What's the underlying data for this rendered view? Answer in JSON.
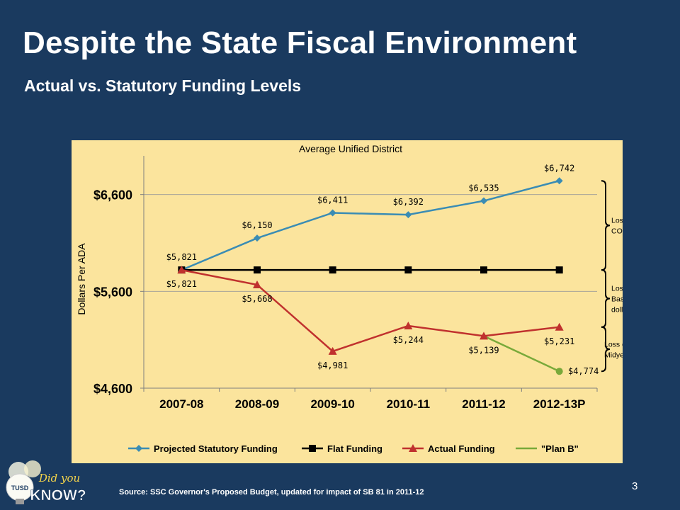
{
  "slide": {
    "title": "Despite the State Fiscal Environment",
    "subtitle": "Actual vs. Statutory Funding Levels",
    "source": "Source: SSC Governor's Proposed Budget, updated for impact of SB 81 in 2011-12",
    "page_number": "3",
    "logo": {
      "badge": "TUSD",
      "line1": "Did you",
      "line2": "KNOW?"
    }
  },
  "colors": {
    "background": "#1a3a5f",
    "chart_bg": "#fbe49d",
    "projected": "#3a8cb4",
    "flat": "#000000",
    "actual": "#c0312e",
    "planb": "#79a93a"
  },
  "chart_data": {
    "type": "line",
    "title": "Average Unified District",
    "ylabel": "Dollars Per ADA",
    "xlabel": "",
    "categories": [
      "2007-08",
      "2008-09",
      "2009-10",
      "2010-11",
      "2011-12",
      "2012-13P"
    ],
    "ylim": [
      4600,
      7000
    ],
    "yticks": [
      4600,
      5600,
      6600
    ],
    "ytick_labels": [
      "$4,600",
      "$5,600",
      "$6,600"
    ],
    "grid": true,
    "legend_position": "bottom",
    "series": [
      {
        "name": "Projected Statutory Funding",
        "values": [
          5821,
          6150,
          6411,
          6392,
          6535,
          6742
        ],
        "labels": [
          "$5,821",
          "$6,150",
          "$6,411",
          "$6,392",
          "$6,535",
          "$6,742"
        ],
        "marker": "diamond"
      },
      {
        "name": "Flat Funding",
        "values": [
          5821,
          5821,
          5821,
          5821,
          5821,
          5821
        ],
        "labels": [],
        "marker": "square"
      },
      {
        "name": "Actual Funding",
        "values": [
          5821,
          5668,
          4981,
          5244,
          5139,
          5231
        ],
        "labels": [
          "$5,821",
          "$5,668",
          "$4,981",
          "$5,244",
          "$5,139",
          "$5,231"
        ],
        "marker": "triangle"
      },
      {
        "name": "\"Plan B\"",
        "values": [
          null,
          null,
          null,
          null,
          5139,
          4774
        ],
        "labels": [
          "",
          "",
          "",
          "",
          "",
          "$4,774"
        ],
        "marker": "circle"
      }
    ],
    "annotations": [
      {
        "lines": [
          "Loss of",
          "COLA"
        ],
        "from": 6742,
        "to": 5821
      },
      {
        "lines": [
          "Loss of",
          "Baseline",
          "dollars"
        ],
        "from": 5821,
        "to": 5231
      },
      {
        "lines": [
          "Loss due to",
          "Midyear cut"
        ],
        "from": 5231,
        "to": 4774
      }
    ]
  }
}
